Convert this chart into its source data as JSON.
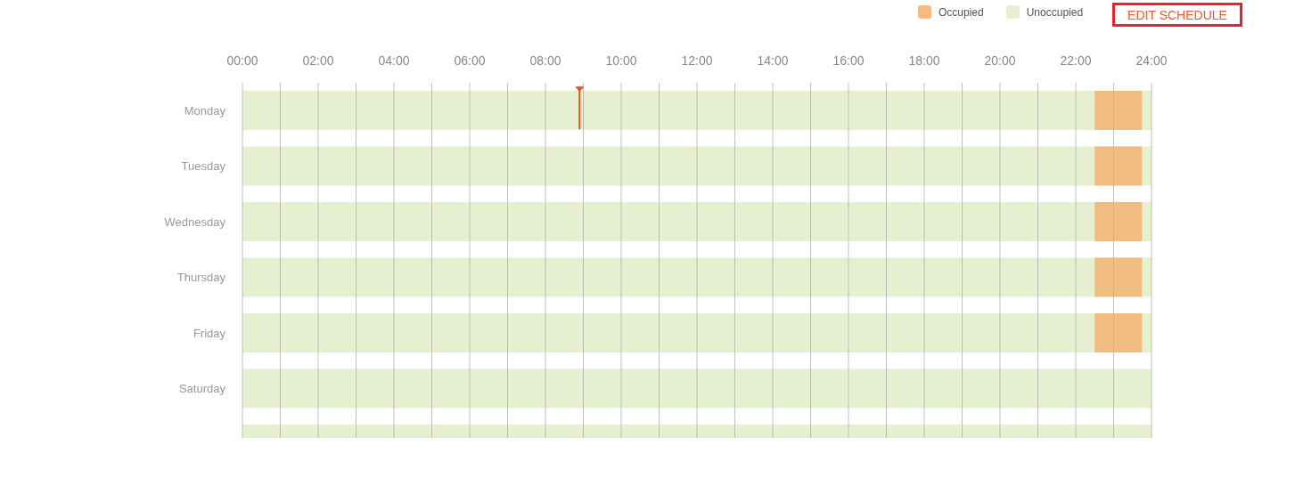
{
  "chart_data": {
    "type": "bar",
    "orientation": "horizontal",
    "categories": [
      "Monday",
      "Tuesday",
      "Wednesday",
      "Thursday",
      "Friday",
      "Saturday",
      null
    ],
    "series": [
      {
        "name": "Occupied",
        "color": "#f1bc80",
        "base": [
          22.5,
          22.5,
          22.5,
          22.5,
          22.5,
          null,
          null
        ],
        "values": [
          1.25,
          1.25,
          1.25,
          1.25,
          1.25,
          null,
          null
        ]
      },
      {
        "name": "Unoccupied",
        "color": "#e6efd0",
        "base": [
          0,
          0,
          0,
          0,
          0,
          0,
          0
        ],
        "values": [
          24,
          24,
          24,
          24,
          24,
          24,
          24
        ]
      }
    ],
    "xlim": [
      0,
      24
    ],
    "xticks": [
      {
        "value": 0,
        "label": "00:00"
      },
      {
        "value": 1,
        "label": null
      },
      {
        "value": 2,
        "label": "02:00"
      },
      {
        "value": 3,
        "label": null
      },
      {
        "value": 4,
        "label": "04:00"
      },
      {
        "value": 5,
        "label": null
      },
      {
        "value": 6,
        "label": "06:00"
      },
      {
        "value": 7,
        "label": null
      },
      {
        "value": 8,
        "label": "08:00"
      },
      {
        "value": 9,
        "label": null
      },
      {
        "value": 10,
        "label": "10:00"
      },
      {
        "value": 11,
        "label": null
      },
      {
        "value": 12,
        "label": "12:00"
      },
      {
        "value": 13,
        "label": null
      },
      {
        "value": 14,
        "label": "14:00"
      },
      {
        "value": 15,
        "label": null
      },
      {
        "value": 16,
        "label": "16:00"
      },
      {
        "value": 17,
        "label": null
      },
      {
        "value": 18,
        "label": "18:00"
      },
      {
        "value": 19,
        "label": null
      },
      {
        "value": 20,
        "label": "20:00"
      },
      {
        "value": 21,
        "label": null
      },
      {
        "value": 22,
        "label": "22:00"
      },
      {
        "value": 23,
        "label": null
      },
      {
        "value": 24,
        "label": "24:00"
      }
    ],
    "grid": "x",
    "legend": "top right",
    "ref_lines": [
      {
        "axis": "x",
        "value": 8.9,
        "color": "#e2551c"
      }
    ],
    "annotations": [
      "EDIT SCHEDULE"
    ]
  }
}
